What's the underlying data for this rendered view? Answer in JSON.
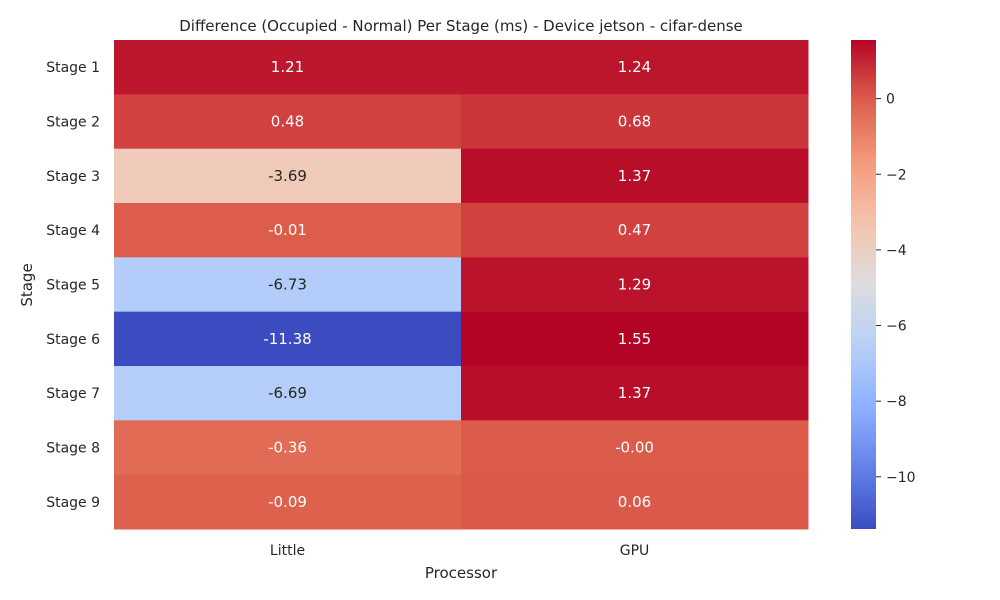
{
  "chart_data": {
    "type": "heatmap",
    "title": "Difference (Occupied - Normal) Per Stage (ms) - Device jetson - cifar-dense",
    "xlabel": "Processor",
    "ylabel": "Stage",
    "x_categories": [
      "Little",
      "GPU"
    ],
    "y_categories": [
      "Stage 1",
      "Stage 2",
      "Stage 3",
      "Stage 4",
      "Stage 5",
      "Stage 6",
      "Stage 7",
      "Stage 8",
      "Stage 9"
    ],
    "values": [
      [
        1.21,
        1.24
      ],
      [
        0.48,
        0.68
      ],
      [
        -3.69,
        1.37
      ],
      [
        -0.01,
        0.47
      ],
      [
        -6.73,
        1.29
      ],
      [
        -11.38,
        1.55
      ],
      [
        -6.69,
        1.37
      ],
      [
        -0.36,
        -0.0
      ],
      [
        -0.09,
        0.06
      ]
    ],
    "value_labels": [
      [
        "1.21",
        "1.24"
      ],
      [
        "0.48",
        "0.68"
      ],
      [
        "-3.69",
        "1.37"
      ],
      [
        "-0.01",
        "0.47"
      ],
      [
        "-6.73",
        "1.29"
      ],
      [
        "-11.38",
        "1.55"
      ],
      [
        "-6.69",
        "1.37"
      ],
      [
        "-0.36",
        "-0.00"
      ],
      [
        "-0.09",
        "0.06"
      ]
    ],
    "colormap": "coolwarm",
    "vmin": -11.38,
    "vmax": 1.55,
    "colorbar_ticks": [
      0,
      -2,
      -4,
      -6,
      -8,
      -10
    ],
    "colorbar_tick_labels": [
      "0",
      "−2",
      "−4",
      "−6",
      "−8",
      "−10"
    ]
  }
}
